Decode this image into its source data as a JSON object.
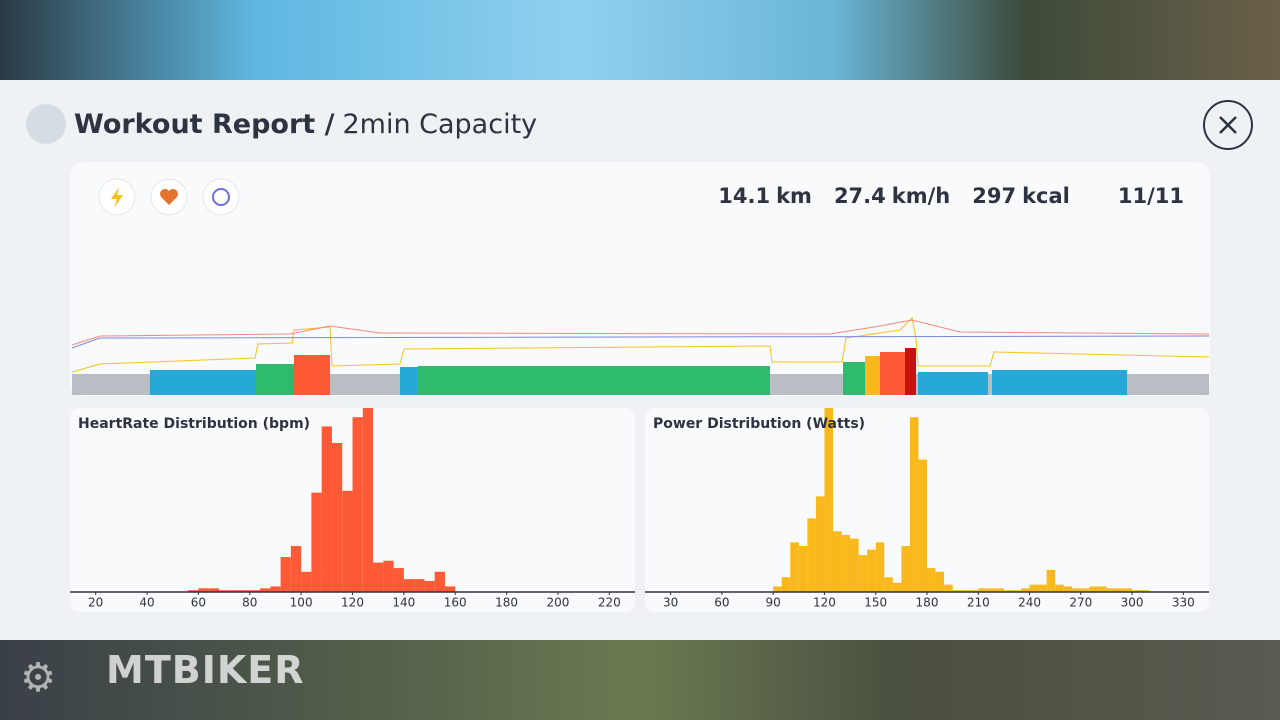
{
  "header": {
    "title": "Workout Report /",
    "subtitle": "2min Capacity"
  },
  "stats": [
    {
      "value": "14.1",
      "unit": "km"
    },
    {
      "value": "27.4",
      "unit": "km/h"
    },
    {
      "value": "297",
      "unit": "kcal"
    },
    {
      "value": "11/11"
    }
  ],
  "watermark": "MTBIKER",
  "chart_data": [
    {
      "type": "histogram",
      "title": "HeartRate Distribution (bpm)",
      "color": "#ff5a36",
      "bins": [
        56,
        60,
        64,
        68,
        72,
        76,
        80,
        84,
        88,
        92,
        96,
        100,
        104,
        108,
        112,
        116,
        120,
        124,
        128,
        132,
        136,
        140,
        144,
        148,
        152,
        156,
        160
      ],
      "values": [
        1,
        2,
        2,
        1,
        1,
        1,
        1,
        2,
        3,
        19,
        25,
        11,
        54,
        90,
        81,
        55,
        95,
        100,
        16,
        17,
        13,
        7,
        7,
        6,
        11,
        3
      ],
      "xlim": [
        10,
        230
      ],
      "xticks": [
        20,
        40,
        60,
        80,
        100,
        120,
        140,
        160,
        180,
        200,
        220
      ],
      "ylim": [
        0,
        100
      ]
    },
    {
      "type": "histogram",
      "title": "Power Distribution (Watts)",
      "color": "#f9b81b",
      "bins": [
        90,
        95,
        100,
        105,
        110,
        115,
        120,
        125,
        130,
        135,
        140,
        145,
        150,
        155,
        160,
        165,
        170,
        175,
        180,
        185,
        190,
        195,
        200,
        205,
        210,
        215,
        220,
        225,
        230,
        235,
        240,
        245,
        250,
        255,
        260,
        265,
        270,
        275,
        280,
        285,
        290,
        295,
        300,
        305,
        310
      ],
      "values": [
        3,
        8,
        27,
        25,
        40,
        52,
        100,
        33,
        31,
        29,
        20,
        23,
        27,
        8,
        5,
        25,
        95,
        72,
        13,
        11,
        4,
        1,
        1,
        1,
        2,
        2,
        2,
        1,
        1,
        2,
        4,
        4,
        12,
        4,
        3,
        2,
        2,
        3,
        3,
        2,
        2,
        2,
        1,
        1
      ],
      "xlim": [
        15,
        345
      ],
      "xticks": [
        30,
        60,
        90,
        120,
        150,
        180,
        210,
        240,
        270,
        300,
        330
      ],
      "ylim": [
        0,
        100
      ]
    }
  ]
}
